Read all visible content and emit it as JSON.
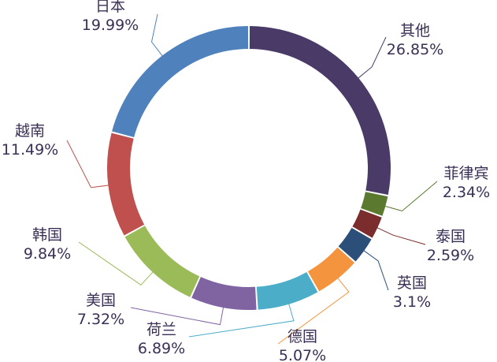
{
  "chart_data": {
    "type": "pie",
    "variant": "donut",
    "title": "",
    "legend": "none",
    "start_angle_deg": 0,
    "direction": "clockwise",
    "slices": [
      {
        "name": "其他",
        "value": 26.85,
        "label": "26.85%",
        "color": "#4a3a68"
      },
      {
        "name": "菲律宾",
        "value": 2.34,
        "label": "2.34%",
        "color": "#5a7530"
      },
      {
        "name": "泰国",
        "value": 2.59,
        "label": "2.59%",
        "color": "#7b2c2c"
      },
      {
        "name": "英国",
        "value": 3.1,
        "label": "3.1%",
        "color": "#2b4f78"
      },
      {
        "name": "德国",
        "value": 5.07,
        "label": "5.07%",
        "color": "#f5943f"
      },
      {
        "name": "荷兰",
        "value": 6.89,
        "label": "6.89%",
        "color": "#46aecd"
      },
      {
        "name": "美国",
        "value": 7.32,
        "label": "7.32%",
        "color": "#8068aa"
      },
      {
        "name": "韩国",
        "value": 9.84,
        "label": "9.84%",
        "color": "#9bbb59"
      },
      {
        "name": "越南",
        "value": 11.49,
        "label": "11.49%",
        "color": "#c0504d"
      },
      {
        "name": "日本",
        "value": 19.99,
        "label": "19.99%",
        "color": "#4f81bd"
      }
    ]
  }
}
